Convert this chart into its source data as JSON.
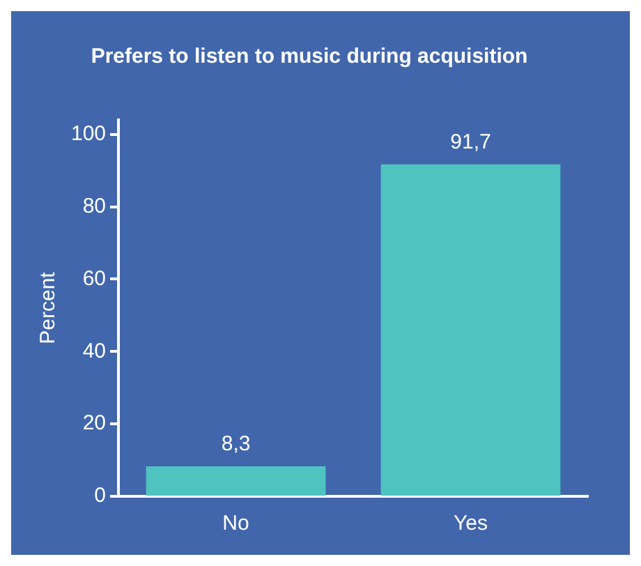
{
  "chart_data": {
    "type": "bar",
    "title": "Prefers to listen to music during acquisition",
    "ylabel": "Percent",
    "categories": [
      "No",
      "Yes"
    ],
    "values": [
      8.3,
      91.7
    ],
    "color": "#4fc3c0",
    "value_labels": [
      "8,3",
      "91,7"
    ],
    "ylim": [
      0,
      104
    ],
    "yticks": [
      0,
      20,
      40,
      60,
      80,
      100
    ],
    "grid": false,
    "legend": false
  }
}
